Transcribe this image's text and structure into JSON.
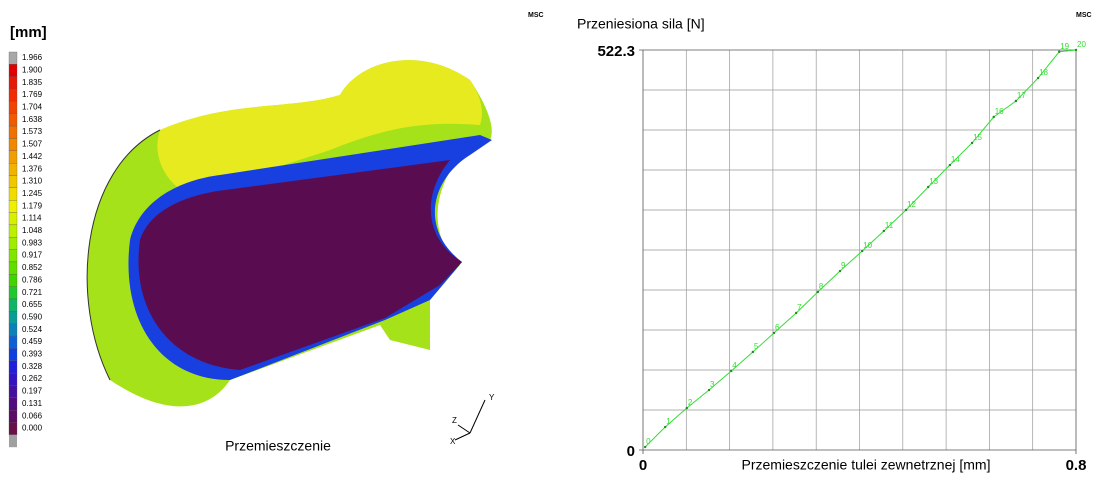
{
  "contour": {
    "legend_title": "[mm]",
    "levels": [
      "1.966",
      "1.900",
      "1.835",
      "1.769",
      "1.704",
      "1.638",
      "1.573",
      "1.507",
      "1.442",
      "1.376",
      "1.310",
      "1.245",
      "1.179",
      "1.114",
      "1.048",
      "0.983",
      "0.917",
      "0.852",
      "0.786",
      "0.721",
      "0.655",
      "0.590",
      "0.524",
      "0.459",
      "0.393",
      "0.328",
      "0.262",
      "0.197",
      "0.131",
      "0.066",
      "0.000"
    ],
    "colors": [
      "#a8a8a8",
      "#e00000",
      "#e81808",
      "#f02c00",
      "#f04400",
      "#f05a00",
      "#f07000",
      "#f08800",
      "#f09e00",
      "#f0b400",
      "#f0c800",
      "#f0dc00",
      "#eef000",
      "#d6f000",
      "#bcf000",
      "#a0ec00",
      "#80e600",
      "#60de00",
      "#40d400",
      "#20c830",
      "#10b468",
      "#0c9c98",
      "#0c80b8",
      "#0c60d4",
      "#0c40e0",
      "#2020dc",
      "#3414c0",
      "#4410a0",
      "#520c80",
      "#5c0c64",
      "#6a1048"
    ],
    "caption": "Przemieszczenie",
    "logo": "MSC",
    "axes": [
      "Y",
      "Z",
      "X"
    ]
  },
  "chart_data": {
    "type": "line",
    "title": "Przeniesiona sila [N]",
    "x_label": "Przemieszczenie tulei zewnetrznej [mm]",
    "logo": "MSC",
    "x": [
      0.004,
      0.041,
      0.081,
      0.122,
      0.163,
      0.203,
      0.242,
      0.283,
      0.323,
      0.364,
      0.405,
      0.445,
      0.486,
      0.527,
      0.567,
      0.608,
      0.648,
      0.689,
      0.73,
      0.769,
      0.8
    ],
    "series": [
      {
        "name": "Przeniesiona sila",
        "color": "#33dd33",
        "values": [
          3.9,
          30.0,
          54.8,
          78.3,
          103.2,
          128.0,
          152.8,
          178.9,
          206.3,
          233.7,
          259.8,
          286.0,
          313.4,
          343.4,
          372.1,
          400.9,
          434.8,
          455.7,
          485.7,
          520,
          522.3
        ]
      }
    ],
    "point_labels": [
      "0",
      "1",
      "2",
      "3",
      "4",
      "5",
      "6",
      "7",
      "8",
      "9",
      "10",
      "11",
      "12",
      "13",
      "14",
      "15",
      "16",
      "17",
      "18",
      "19",
      "20"
    ],
    "xlim": [
      0,
      0.8
    ],
    "ylim": [
      0,
      522.3
    ],
    "xticks": [
      0,
      0.8
    ],
    "yticks": [
      0,
      522.3
    ],
    "grid": true
  }
}
